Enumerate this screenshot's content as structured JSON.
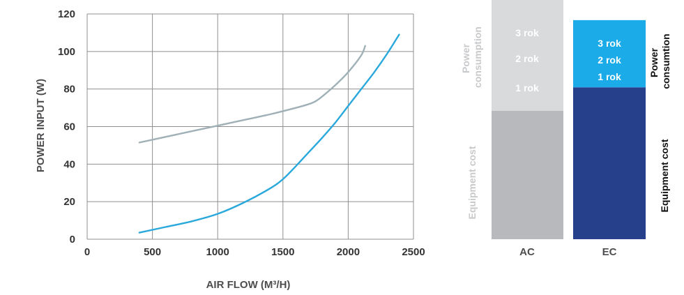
{
  "chart_data": [
    {
      "type": "line",
      "xlabel": "AIR FLOW (M³/H)",
      "ylabel": "POWER INPUT (W)",
      "xlim": [
        0,
        2500
      ],
      "ylim": [
        0,
        120
      ],
      "x_ticks": [
        "0",
        "500",
        "1000",
        "1500",
        "2000",
        "2500"
      ],
      "y_ticks": [
        "0",
        "20",
        "40",
        "60",
        "80",
        "100",
        "120"
      ],
      "grid": true,
      "series": [
        {
          "color": "#9fb0b7",
          "x": [
            400,
            600,
            800,
            1000,
            1200,
            1400,
            1600,
            1700,
            1750,
            1800,
            1900,
            2000,
            2100,
            2130
          ],
          "y": [
            51.5,
            54.5,
            57.5,
            60.5,
            63.5,
            66.5,
            70,
            72,
            73.5,
            76,
            82,
            89,
            98,
            103
          ]
        },
        {
          "color": "#29a8dc",
          "x": [
            400,
            600,
            800,
            1000,
            1200,
            1400,
            1500,
            1600,
            1700,
            1800,
            1900,
            2000,
            2100,
            2200,
            2300,
            2390
          ],
          "y": [
            3.5,
            6.5,
            9.5,
            13.5,
            19.5,
            27,
            32,
            39,
            46.5,
            54,
            62,
            71,
            80,
            89,
            99,
            109
          ]
        }
      ]
    },
    {
      "type": "bar",
      "stacked": true,
      "categories": [
        "AC",
        "EC"
      ],
      "segments": [
        {
          "category": "AC",
          "name": "Equipment cost",
          "value": 66,
          "color": "#b8b9bc"
        },
        {
          "category": "AC",
          "name": "Power consumption",
          "value": 64,
          "color": "#d9dadc"
        },
        {
          "category": "EC",
          "name": "Equipment cost",
          "value": 78,
          "color": "#27408b"
        },
        {
          "category": "EC",
          "name": "Power consumtion",
          "value": 34.5,
          "color": "#1aabe8"
        }
      ],
      "ylim": [
        0,
        130
      ],
      "annotations": {
        "AC": [
          "3 rok",
          "2 rok",
          "1 rok"
        ],
        "EC": [
          "3 rok",
          "2 rok",
          "1 rok"
        ]
      },
      "side_labels": {
        "ac_power": [
          "Power",
          "consumption"
        ],
        "ac_equipment": "Equipment cost",
        "ec_power": [
          "Power",
          "consumtion"
        ],
        "ec_equipment": "Equipment cost"
      }
    }
  ]
}
